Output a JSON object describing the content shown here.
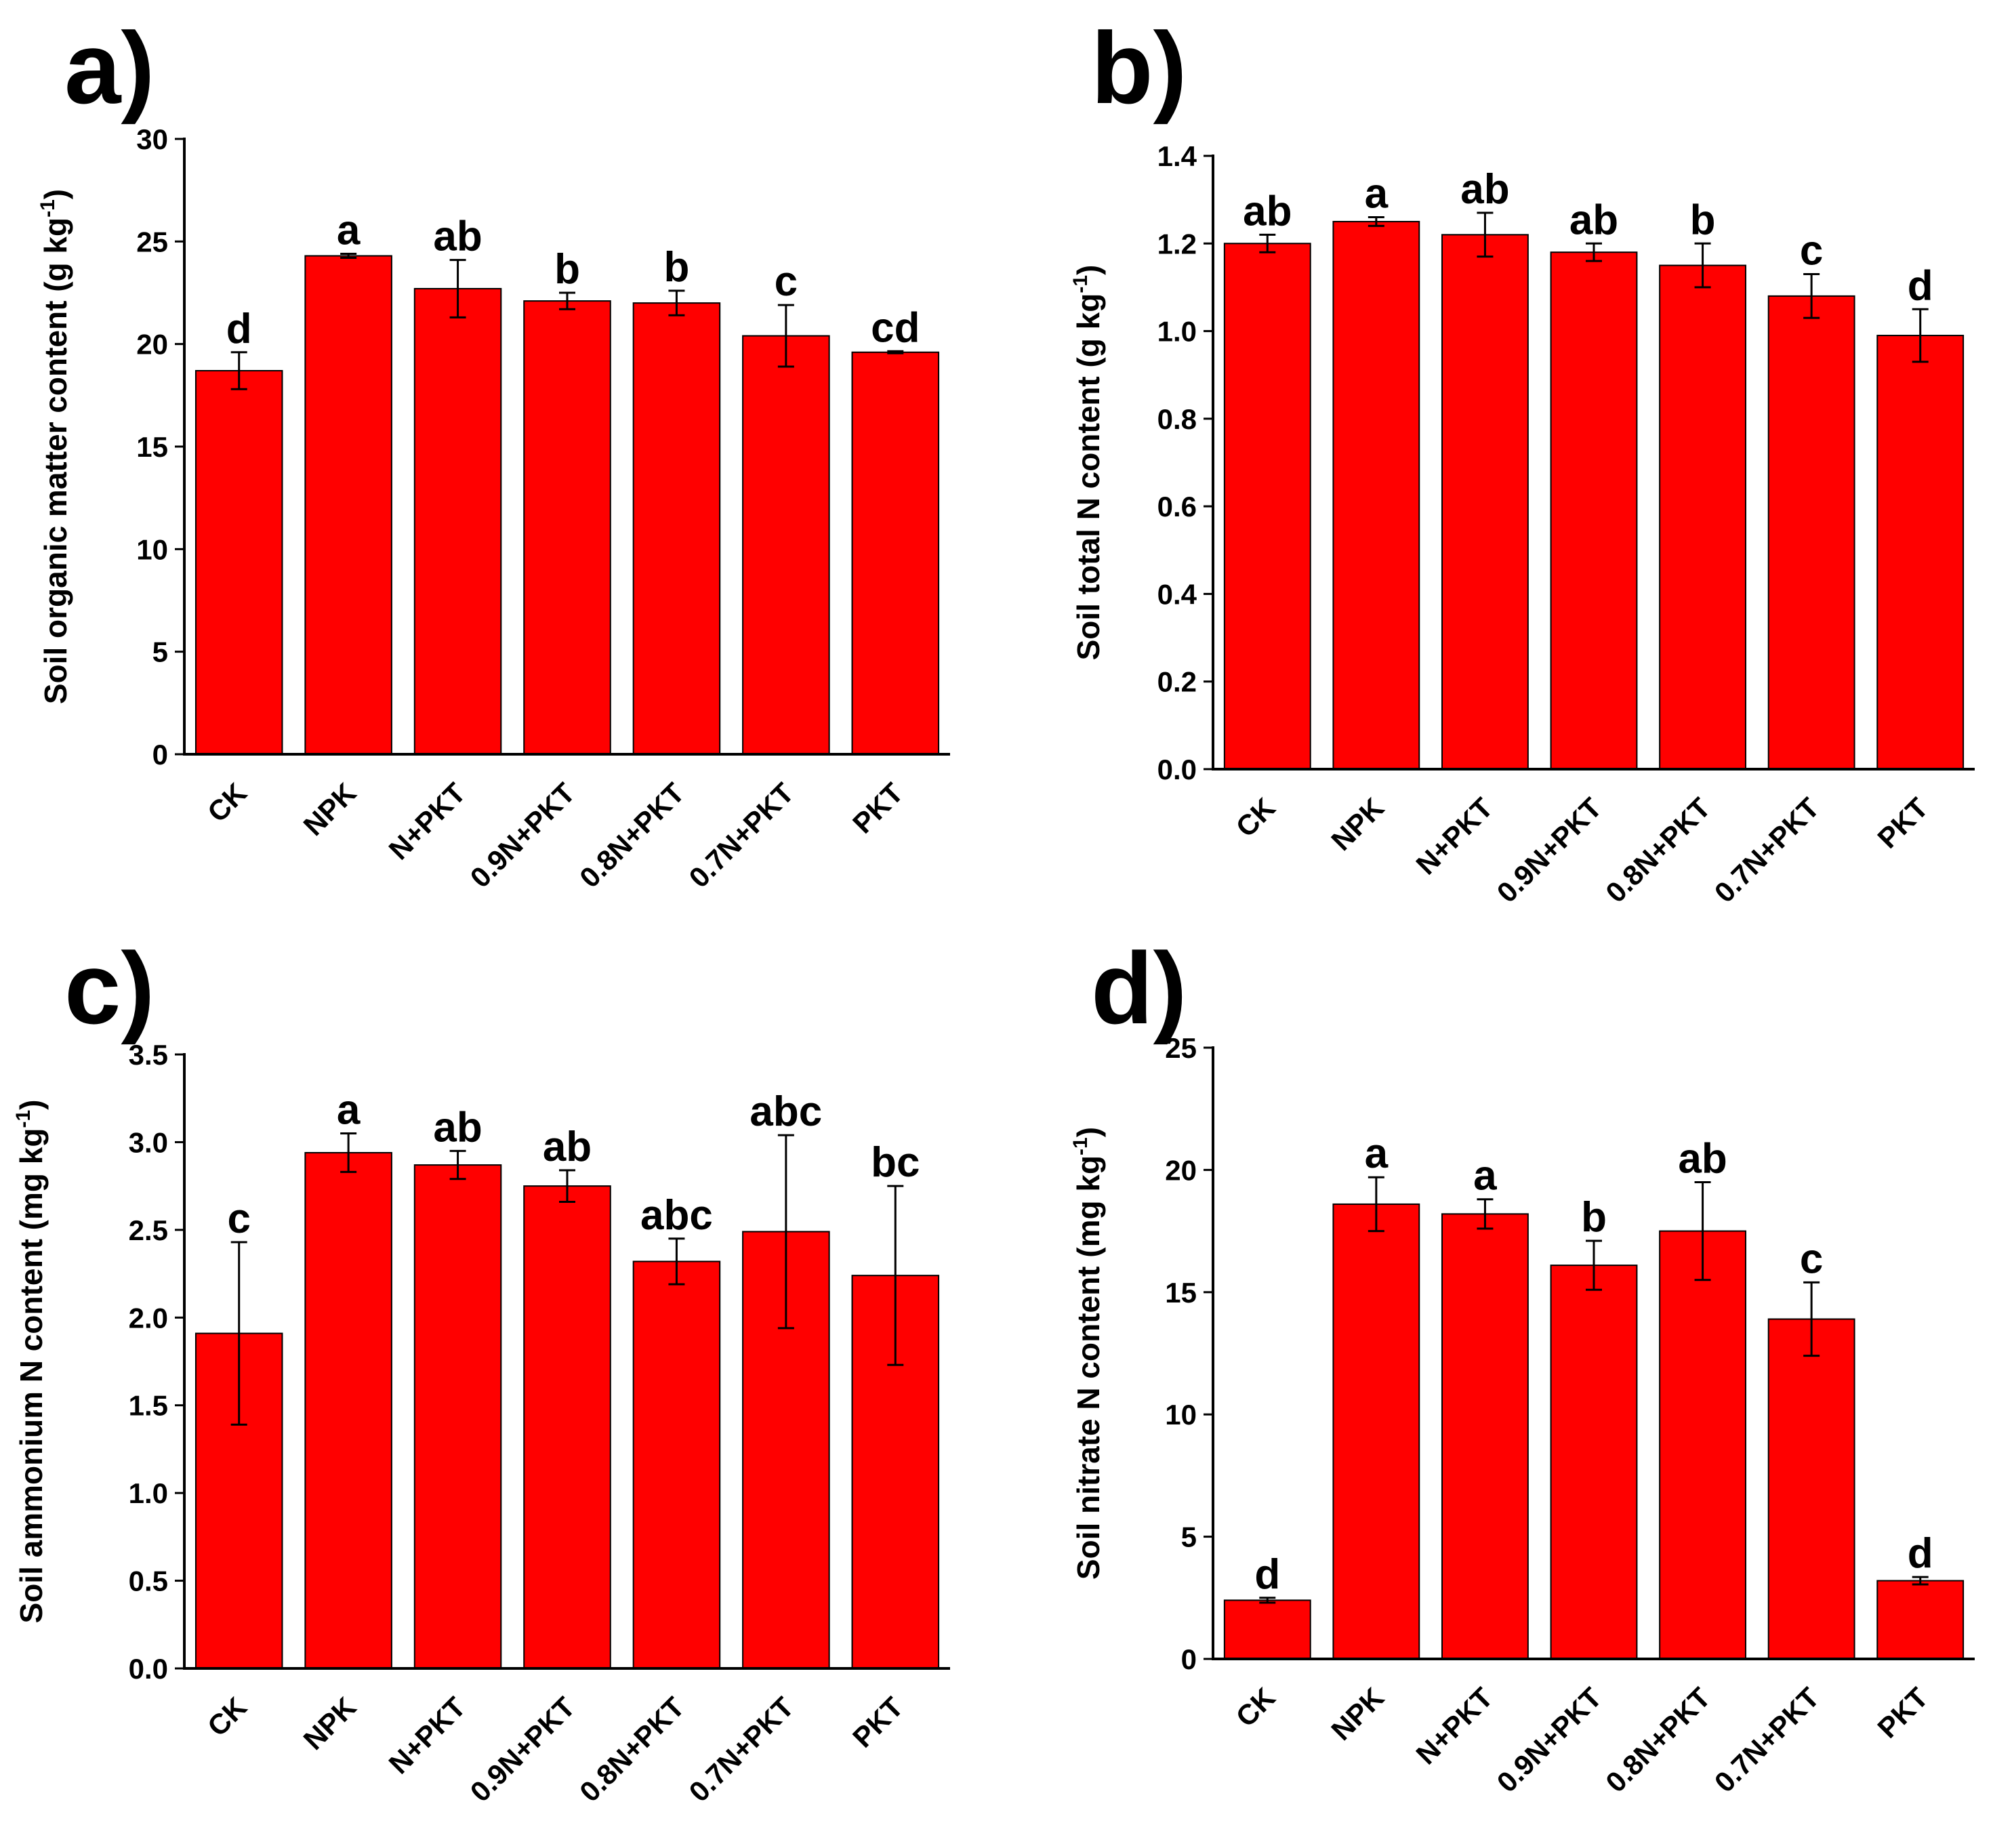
{
  "figure": {
    "bar_color": "#ff0000",
    "axis_color": "#000000"
  },
  "chart_data": [
    {
      "panel": "a)",
      "type": "bar",
      "categories": [
        "CK",
        "NPK",
        "N+PKT",
        "0.9N+PKT",
        "0.8N+PKT",
        "0.7N+PKT",
        "PKT"
      ],
      "values": [
        18.7,
        24.3,
        22.7,
        22.1,
        22.0,
        20.4,
        19.6
      ],
      "errors": [
        0.9,
        0.1,
        1.4,
        0.4,
        0.6,
        1.5,
        0.05
      ],
      "significance": [
        "d",
        "a",
        "ab",
        "b",
        "b",
        "c",
        "cd"
      ],
      "ylabel": "Soil organic matter content (g kg",
      "ylabel_sup": "-1",
      "ylabel_end": ")",
      "ylim": [
        0,
        30
      ],
      "yticks": [
        "0",
        "5",
        "10",
        "15",
        "20",
        "25",
        "30"
      ],
      "ytick_values": [
        0,
        5,
        10,
        15,
        20,
        25,
        30
      ]
    },
    {
      "panel": "b)",
      "type": "bar",
      "categories": [
        "CK",
        "NPK",
        "N+PKT",
        "0.9N+PKT",
        "0.8N+PKT",
        "0.7N+PKT",
        "PKT"
      ],
      "values": [
        1.2,
        1.25,
        1.22,
        1.18,
        1.15,
        1.08,
        0.99
      ],
      "errors": [
        0.02,
        0.01,
        0.05,
        0.02,
        0.05,
        0.05,
        0.06
      ],
      "significance": [
        "ab",
        "a",
        "ab",
        "ab",
        "b",
        "c",
        "d"
      ],
      "ylabel": "Soil total N content (g kg",
      "ylabel_sup": "-1",
      "ylabel_end": ")",
      "ylim": [
        0,
        1.4
      ],
      "yticks": [
        "0.0",
        "0.2",
        "0.4",
        "0.6",
        "0.8",
        "1.0",
        "1.2",
        "1.4"
      ],
      "ytick_values": [
        0,
        0.2,
        0.4,
        0.6,
        0.8,
        1.0,
        1.2,
        1.4
      ]
    },
    {
      "panel": "c)",
      "type": "bar",
      "categories": [
        "CK",
        "NPK",
        "N+PKT",
        "0.9N+PKT",
        "0.8N+PKT",
        "0.7N+PKT",
        "PKT"
      ],
      "values": [
        1.91,
        2.94,
        2.87,
        2.75,
        2.32,
        2.49,
        2.24
      ],
      "errors": [
        0.52,
        0.11,
        0.08,
        0.09,
        0.13,
        0.55,
        0.51
      ],
      "significance": [
        "c",
        "a",
        "ab",
        "ab",
        "abc",
        "abc",
        "bc"
      ],
      "ylabel": "Soil ammonium N content (mg kg",
      "ylabel_sup": "-1",
      "ylabel_end": ")",
      "ylim": [
        0,
        3.5
      ],
      "yticks": [
        "0.0",
        "0.5",
        "1.0",
        "1.5",
        "2.0",
        "2.5",
        "3.0",
        "3.5"
      ],
      "ytick_values": [
        0,
        0.5,
        1.0,
        1.5,
        2.0,
        2.5,
        3.0,
        3.5
      ]
    },
    {
      "panel": "d)",
      "type": "bar",
      "categories": [
        "CK",
        "NPK",
        "N+PKT",
        "0.9N+PKT",
        "0.8N+PKT",
        "0.7N+PKT",
        "PKT"
      ],
      "values": [
        2.4,
        18.6,
        18.2,
        16.1,
        17.5,
        13.9,
        3.2
      ],
      "errors": [
        0.1,
        1.1,
        0.6,
        1.0,
        2.0,
        1.5,
        0.15
      ],
      "significance": [
        "d",
        "a",
        "a",
        "b",
        "ab",
        "c",
        "d"
      ],
      "ylabel": "Soil nitrate N content (mg kg",
      "ylabel_sup": "-1",
      "ylabel_end": ")",
      "ylim": [
        0,
        25
      ],
      "yticks": [
        "0",
        "5",
        "10",
        "15",
        "20",
        "25"
      ],
      "ytick_values": [
        0,
        5,
        10,
        15,
        20,
        25
      ]
    }
  ]
}
